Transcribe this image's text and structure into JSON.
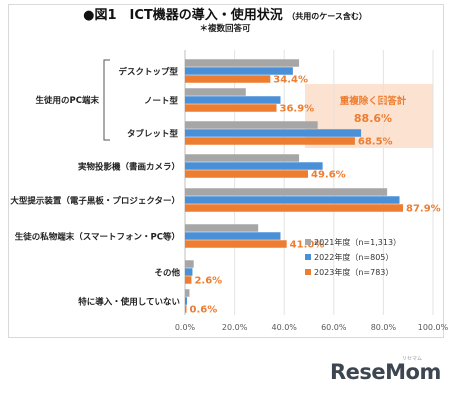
{
  "header": {
    "title_main": "●図1　ICT機器の導入・使用状況",
    "title_note": "（共用のケース含む）",
    "subtitle": "＊複数回答可"
  },
  "group_label": "生徒用のPC端末",
  "callout": {
    "line1": "重複除く回答計",
    "line2": "88.6%"
  },
  "chart_data": {
    "type": "bar",
    "orientation": "horizontal",
    "categories": [
      "デスクトップ型",
      "ノート型",
      "タブレット型",
      "実物投影機（書画カメラ）",
      "大型提示装置（電子黒板・プロジェクター）",
      "生徒の私物端末（スマートフォン・PC等）",
      "その他",
      "特に導入・使用していない"
    ],
    "series": [
      {
        "name": "2021年度（n=1,313）",
        "color": "#a6a6a6",
        "values": [
          46.0,
          24.5,
          53.5,
          46.0,
          81.5,
          29.5,
          3.5,
          1.8
        ]
      },
      {
        "name": "2022年度（n=805）",
        "color": "#4a90d9",
        "values": [
          43.5,
          38.5,
          71.0,
          55.5,
          86.5,
          38.5,
          3.0,
          0.8
        ]
      },
      {
        "name": "2023年度（n=783）",
        "color": "#ed7d31",
        "values": [
          34.4,
          36.9,
          68.5,
          49.6,
          87.9,
          41.0,
          2.6,
          0.6
        ]
      }
    ],
    "labels_2023": [
      "34.4%",
      "36.9%",
      "68.5%",
      "49.6%",
      "87.9%",
      "41.0%",
      "2.6%",
      "0.6%"
    ],
    "xlim": [
      0,
      100
    ],
    "xticks": [
      "0.0%",
      "20.0%",
      "40.0%",
      "60.0%",
      "80.0%",
      "100.0%"
    ],
    "grid": true,
    "legend_position": "bottom-right"
  },
  "brand": {
    "logo": "ReseMom",
    "logo_kana": "リセマム"
  }
}
